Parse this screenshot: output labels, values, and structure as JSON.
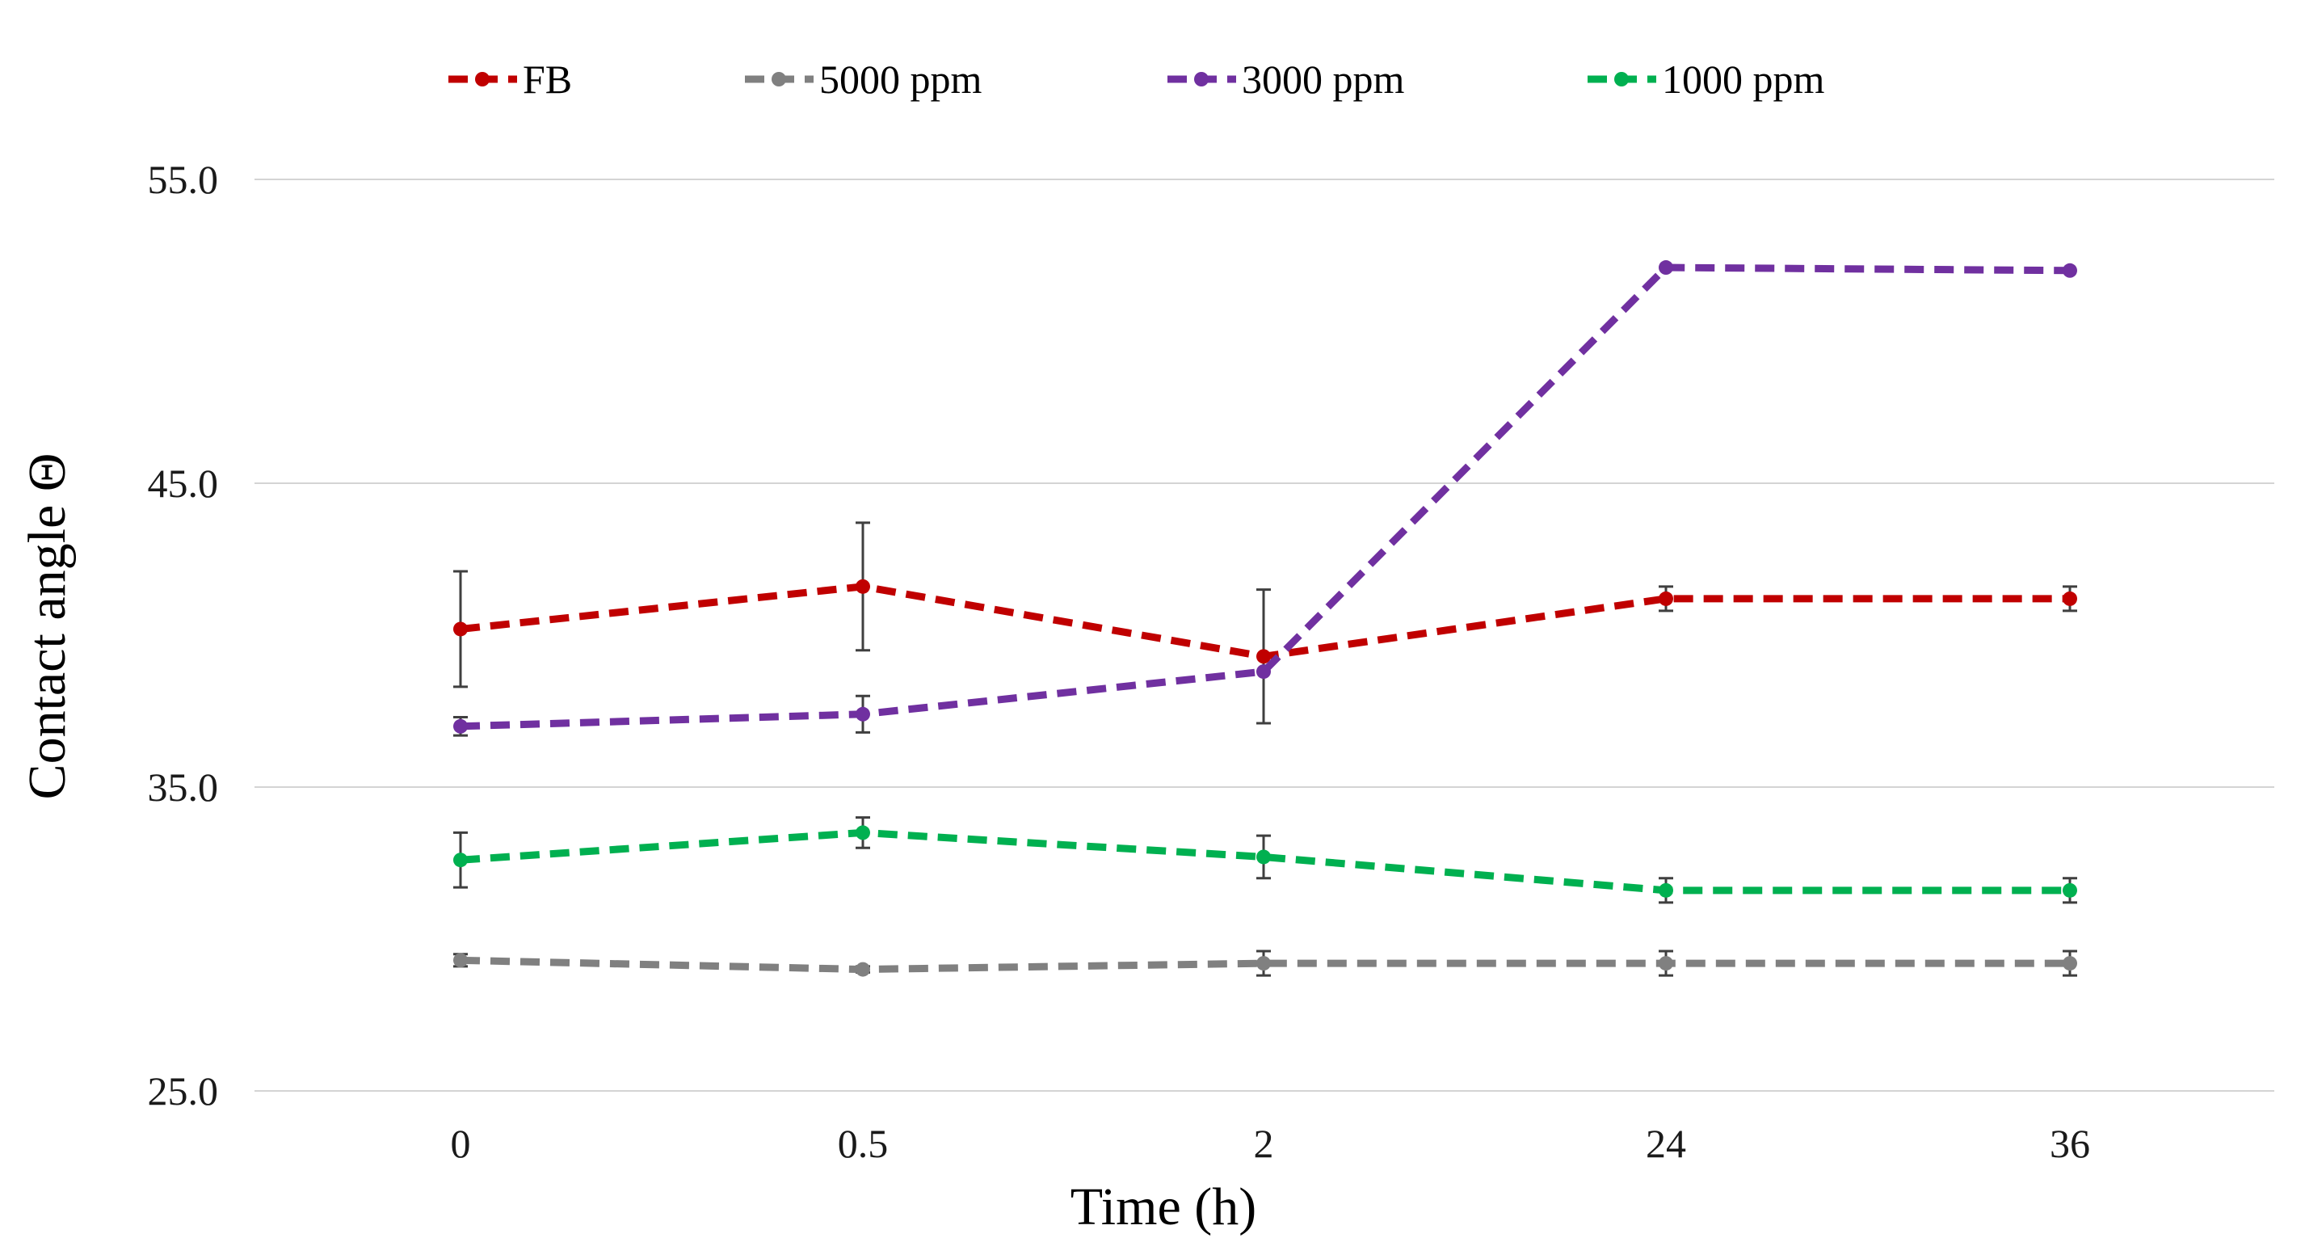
{
  "chart_data": {
    "type": "line",
    "title": "",
    "xlabel": "Time (h)",
    "ylabel": "Contact angle Θ",
    "categories": [
      "0",
      "0.5",
      "2",
      "24",
      "36"
    ],
    "ylim": [
      25,
      55
    ],
    "yticks": [
      25,
      35,
      45,
      55
    ],
    "ytick_labels": [
      "25.0",
      "35.0",
      "45.0",
      "55.0"
    ],
    "grid": true,
    "legend_position": "top",
    "series": [
      {
        "name": "FB",
        "color": "#c00000",
        "values": [
          40.2,
          41.6,
          39.3,
          41.2,
          41.2
        ],
        "errors": [
          1.9,
          2.1,
          2.2,
          0.4,
          0.4
        ]
      },
      {
        "name": "5000 ppm",
        "color": "#808080",
        "values": [
          29.3,
          29.0,
          29.2,
          29.2,
          29.2
        ],
        "errors": [
          0.2,
          0.1,
          0.4,
          0.4,
          0.4
        ]
      },
      {
        "name": "3000 ppm",
        "color": "#7030a0",
        "values": [
          37.0,
          37.4,
          38.8,
          52.1,
          52.0
        ],
        "errors": [
          0.3,
          0.6,
          0.0,
          0.0,
          0.0
        ]
      },
      {
        "name": "1000 ppm",
        "color": "#00b050",
        "values": [
          32.6,
          33.5,
          32.7,
          31.6,
          31.6
        ],
        "errors": [
          0.9,
          0.5,
          0.7,
          0.4,
          0.4
        ]
      }
    ]
  }
}
